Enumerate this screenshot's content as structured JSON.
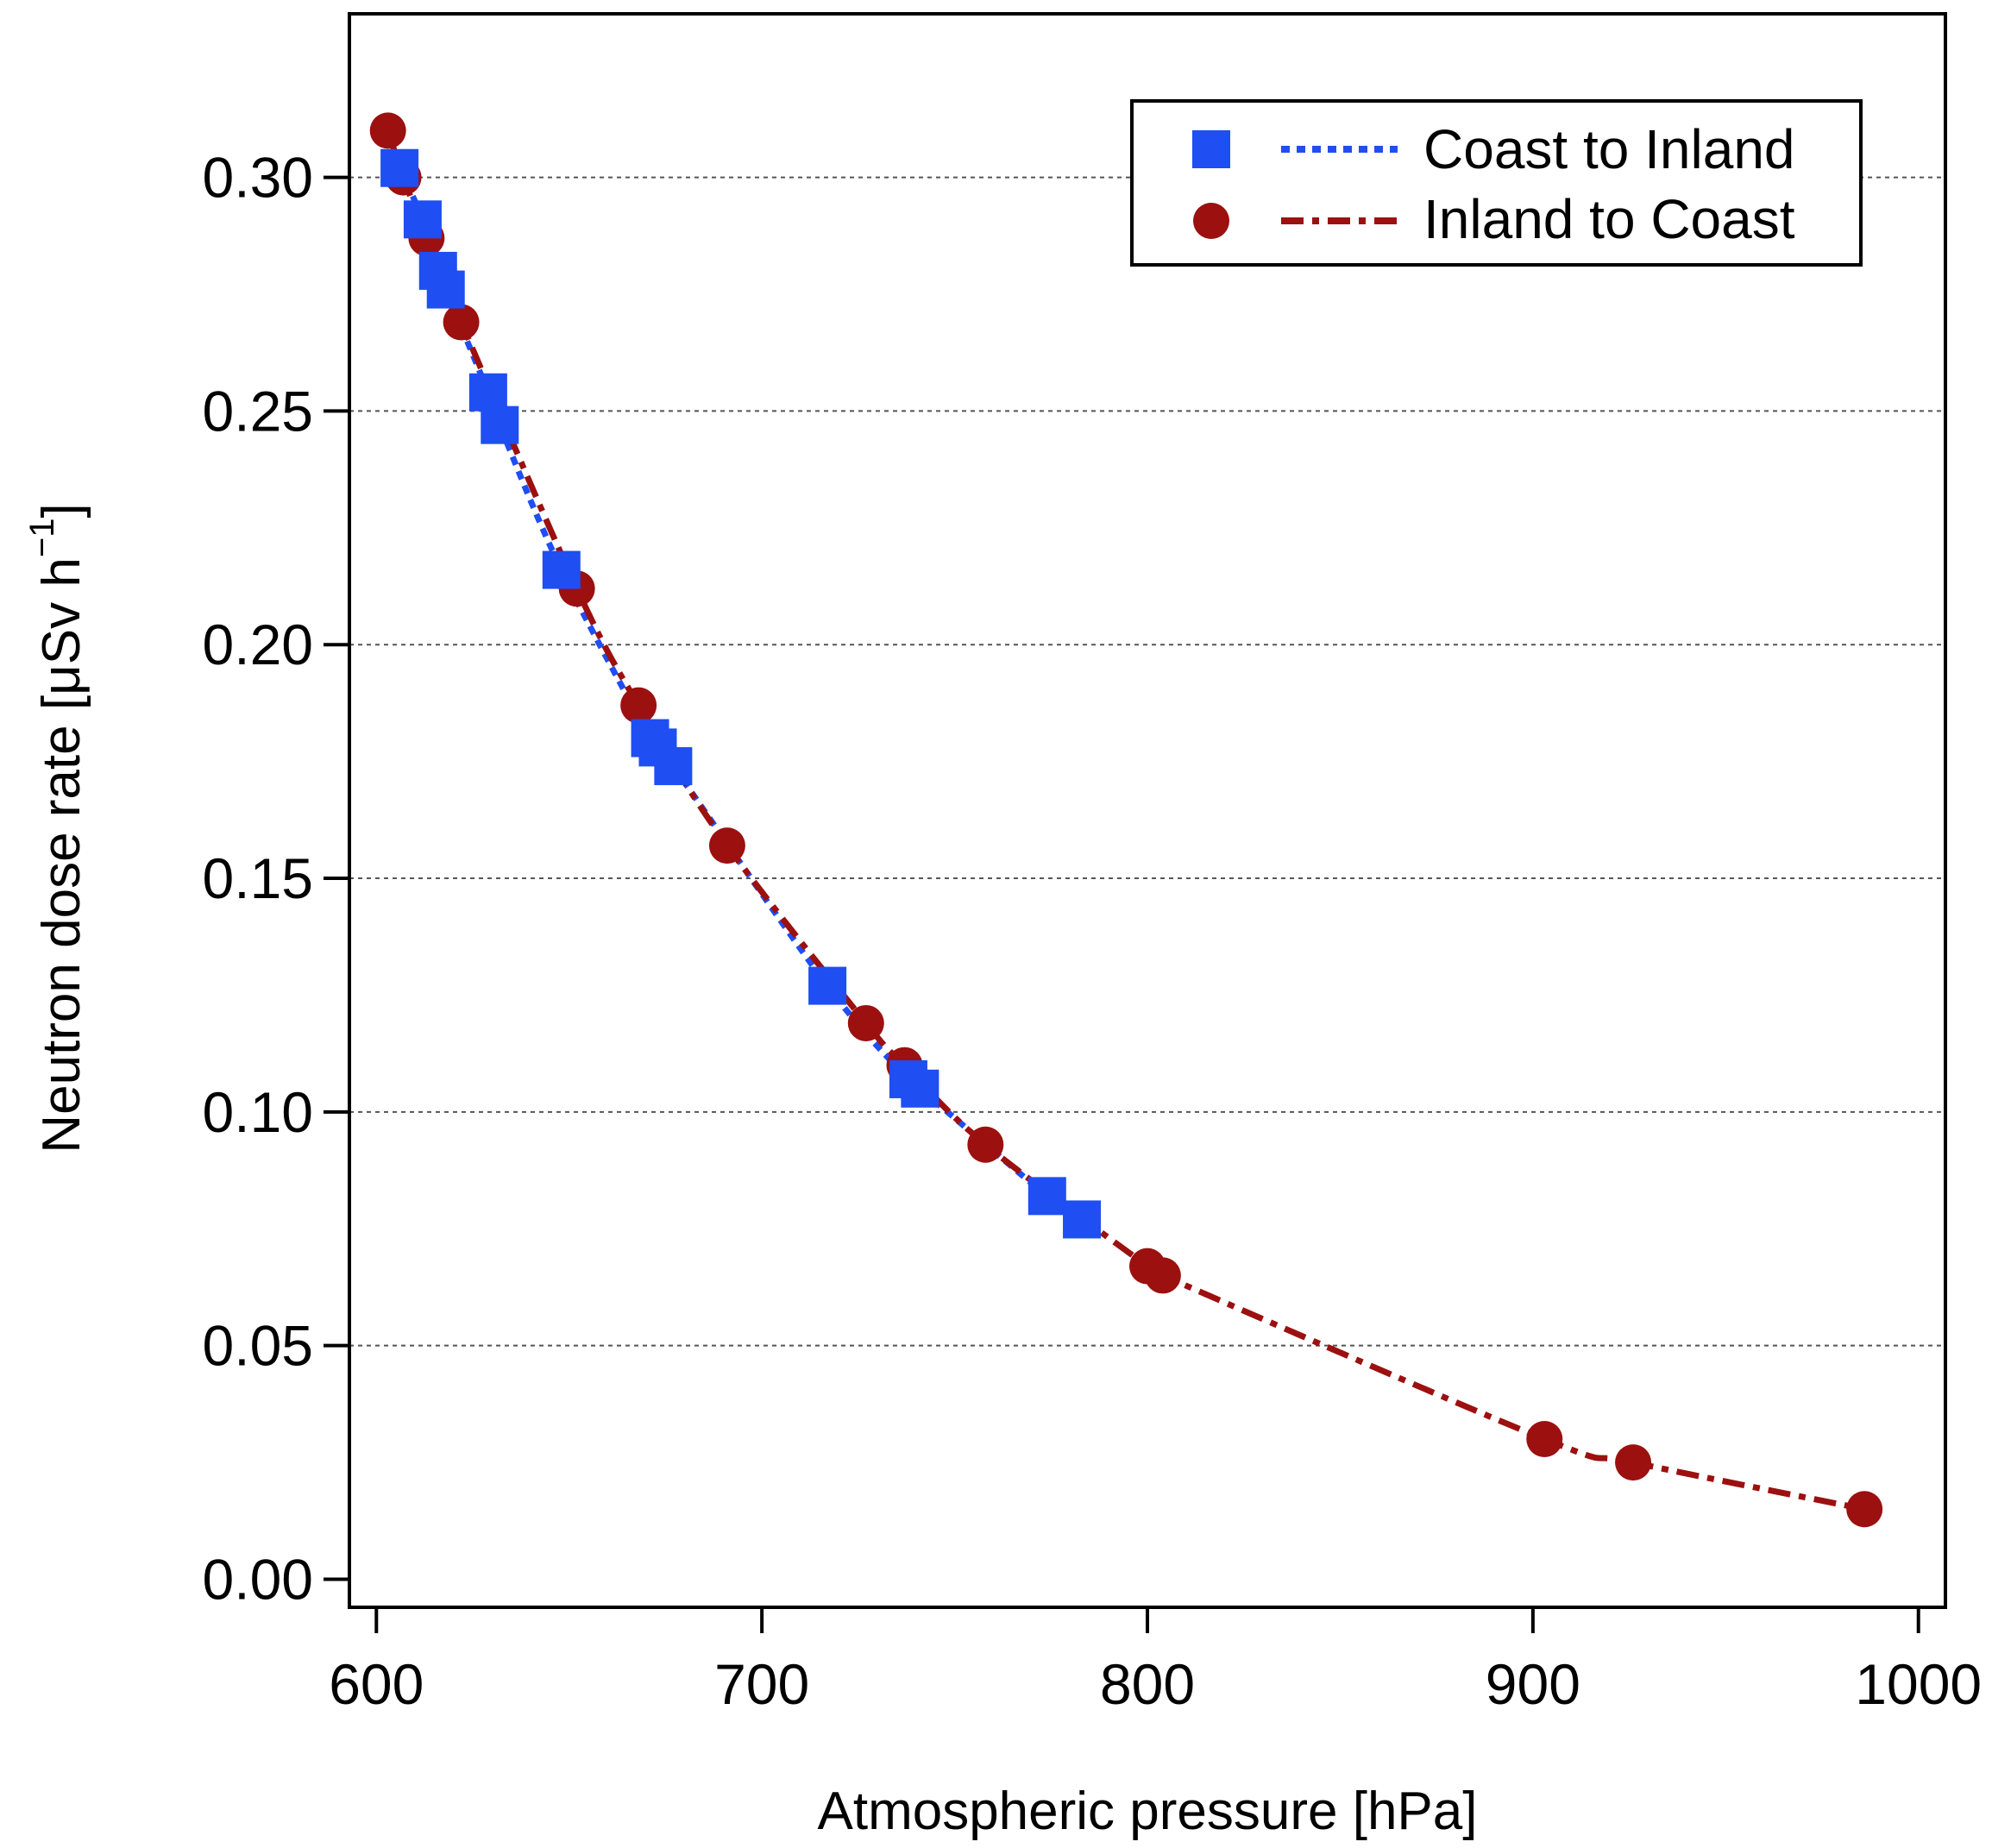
{
  "chart_data": {
    "type": "scatter",
    "xlabel": "Atmospheric pressure [hPa]",
    "ylabel": {
      "main": "Neutron dose rate [μSv h",
      "superscript": "−1",
      "close": "]"
    },
    "xlim": [
      593,
      1007
    ],
    "ylim": [
      -0.006,
      0.335
    ],
    "xticks": [
      "600",
      "700",
      "800",
      "900",
      "1000"
    ],
    "xtick_values": [
      600,
      700,
      800,
      900,
      1000
    ],
    "yticks": [
      "0.00",
      "0.05",
      "0.10",
      "0.15",
      "0.20",
      "0.25",
      "0.30"
    ],
    "ytick_values": [
      0.0,
      0.05,
      0.1,
      0.15,
      0.2,
      0.25,
      0.3
    ],
    "grid": {
      "y": true,
      "x": false,
      "style": "dotted"
    },
    "legend_position": "top-right",
    "series": [
      {
        "name": "Coast to Inland",
        "marker": "square",
        "line": "dotted",
        "color": "#1f4ef2",
        "x": [
          606,
          612,
          616,
          618,
          629,
          632,
          648,
          671,
          673,
          677,
          717,
          738,
          741,
          774,
          783
        ],
        "y": [
          0.302,
          0.291,
          0.28,
          0.276,
          0.254,
          0.247,
          0.216,
          0.18,
          0.178,
          0.174,
          0.127,
          0.107,
          0.105,
          0.082,
          0.077
        ]
      },
      {
        "name": "Inland to Coast",
        "marker": "circle",
        "line": "dash-dot",
        "color": "#9c1010",
        "x": [
          603,
          607,
          613,
          622,
          652,
          668,
          691,
          727,
          737,
          758,
          800,
          804,
          903,
          926,
          986
        ],
        "y": [
          0.31,
          0.3,
          0.287,
          0.269,
          0.212,
          0.187,
          0.157,
          0.119,
          0.11,
          0.093,
          0.067,
          0.065,
          0.03,
          0.025,
          0.015
        ]
      }
    ]
  }
}
